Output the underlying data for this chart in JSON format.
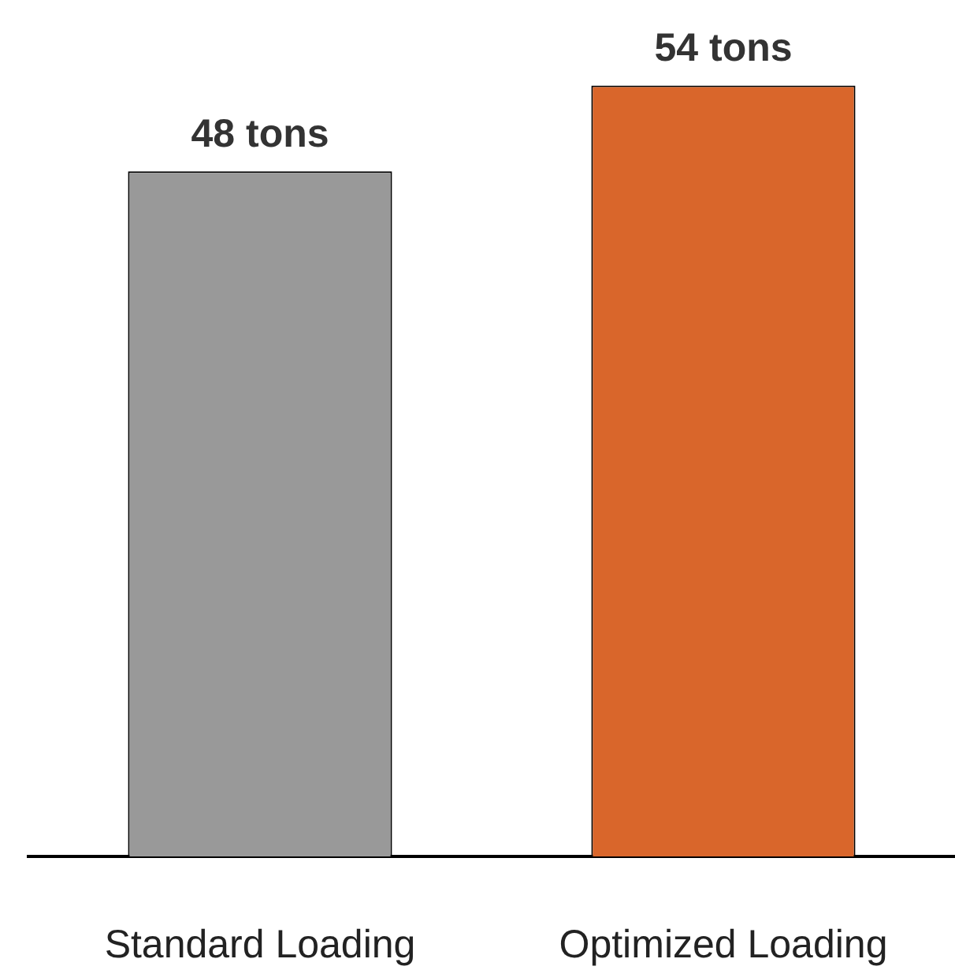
{
  "chart_data": {
    "type": "bar",
    "categories": [
      "Standard Loading",
      "Optimized Loading"
    ],
    "values": [
      48,
      54
    ],
    "colors": [
      "#999999",
      "#d9662b"
    ],
    "value_labels": [
      "48 tons",
      "54 tons"
    ],
    "grid": false,
    "legend": false,
    "tick_labels": "x"
  }
}
